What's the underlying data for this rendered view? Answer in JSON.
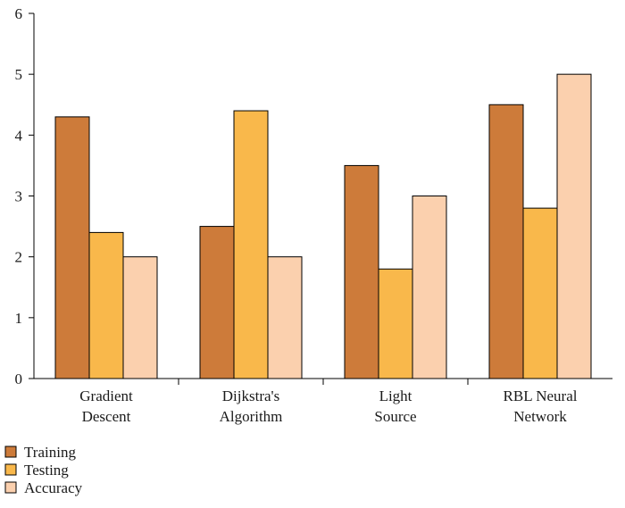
{
  "chart_data": {
    "type": "bar",
    "categories": [
      [
        "Gradient",
        "Descent"
      ],
      [
        "Dijkstra's",
        "Algorithm"
      ],
      [
        "Light",
        "Source"
      ],
      [
        "RBL Neural",
        "Network"
      ]
    ],
    "series": [
      {
        "name": "Training",
        "color": "#CD7B3A",
        "values": [
          4.3,
          2.5,
          3.5,
          4.5
        ]
      },
      {
        "name": "Testing",
        "color": "#F9B84B",
        "values": [
          2.4,
          4.4,
          1.8,
          2.8
        ]
      },
      {
        "name": "Accuracy",
        "color": "#FBD0AE",
        "values": [
          2.0,
          2.0,
          3.0,
          5.0
        ]
      }
    ],
    "ylim": [
      0,
      6
    ],
    "yticks": [
      "0",
      "1",
      "2",
      "3",
      "4",
      "5",
      "6"
    ],
    "grid": false,
    "legend_position": "bottom-left"
  }
}
